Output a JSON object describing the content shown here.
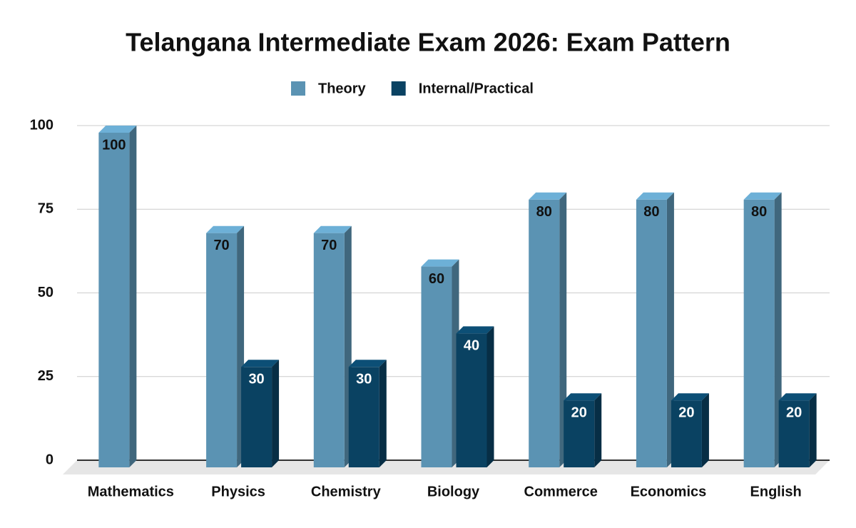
{
  "chart_data": {
    "type": "bar3d",
    "title": "Telangana Intermediate Exam 2026: Exam Pattern",
    "categories": [
      "Mathematics",
      "Physics",
      "Chemistry",
      "Biology",
      "Commerce",
      "Economics",
      "English"
    ],
    "series": [
      {
        "name": "Theory",
        "color": "#5b93b3",
        "values": [
          100,
          70,
          70,
          60,
          80,
          80,
          80
        ]
      },
      {
        "name": "Internal/Practical",
        "color": "#0a4262",
        "values": [
          null,
          30,
          30,
          40,
          20,
          20,
          20
        ]
      }
    ],
    "ylim": [
      0,
      100
    ],
    "yticks": [
      0,
      25,
      50,
      75,
      100
    ],
    "grid": true,
    "legend": "top"
  }
}
